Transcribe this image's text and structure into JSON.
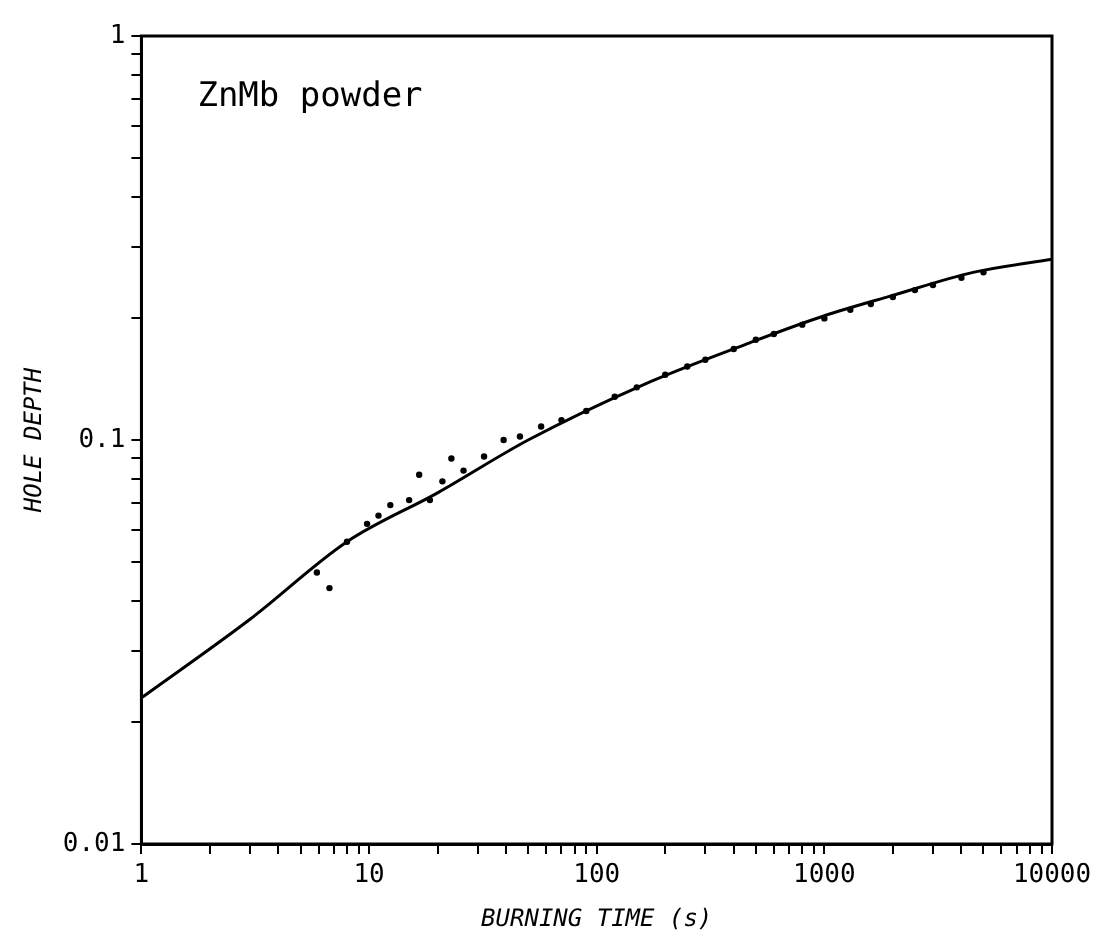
{
  "chart_data": {
    "type": "scatter",
    "xlabel": "BURNING TIME (s)",
    "ylabel": "HOLE DEPTH",
    "annotations": [
      "ZnMb powder"
    ],
    "log": "xy",
    "grid": false,
    "legend": false,
    "xlim": [
      1,
      10000
    ],
    "ylim": [
      0.01,
      1
    ],
    "xticks": [
      1,
      {
        "value": 2,
        "label": null
      },
      {
        "value": 3,
        "label": null
      },
      {
        "value": 4,
        "label": null
      },
      {
        "value": 5,
        "label": null
      },
      {
        "value": 6,
        "label": null
      },
      {
        "value": 7,
        "label": null
      },
      {
        "value": 8,
        "label": null
      },
      {
        "value": 9,
        "label": null
      },
      10,
      {
        "value": 20,
        "label": null
      },
      {
        "value": 30,
        "label": null
      },
      {
        "value": 40,
        "label": null
      },
      {
        "value": 50,
        "label": null
      },
      {
        "value": 60,
        "label": null
      },
      {
        "value": 70,
        "label": null
      },
      {
        "value": 80,
        "label": null
      },
      {
        "value": 90,
        "label": null
      },
      100,
      {
        "value": 200,
        "label": null
      },
      {
        "value": 300,
        "label": null
      },
      {
        "value": 400,
        "label": null
      },
      {
        "value": 500,
        "label": null
      },
      {
        "value": 600,
        "label": null
      },
      {
        "value": 700,
        "label": null
      },
      {
        "value": 800,
        "label": null
      },
      {
        "value": 900,
        "label": null
      },
      1000,
      {
        "value": 2000,
        "label": null
      },
      {
        "value": 3000,
        "label": null
      },
      {
        "value": 4000,
        "label": null
      },
      {
        "value": 5000,
        "label": null
      },
      {
        "value": 6000,
        "label": null
      },
      {
        "value": 7000,
        "label": null
      },
      {
        "value": 8000,
        "label": null
      },
      {
        "value": 9000,
        "label": null
      },
      10000
    ],
    "yticks": [
      0.01,
      {
        "value": 0.02,
        "label": null
      },
      {
        "value": 0.03,
        "label": null
      },
      {
        "value": 0.04,
        "label": null
      },
      {
        "value": 0.05,
        "label": null
      },
      {
        "value": 0.06,
        "label": null
      },
      {
        "value": 0.07,
        "label": null
      },
      {
        "value": 0.08,
        "label": null
      },
      {
        "value": 0.09,
        "label": null
      },
      0.1,
      {
        "value": 0.2,
        "label": null
      },
      {
        "value": 0.3,
        "label": null
      },
      {
        "value": 0.4,
        "label": null
      },
      {
        "value": 0.5,
        "label": null
      },
      {
        "value": 0.6,
        "label": null
      },
      {
        "value": 0.7,
        "label": null
      },
      {
        "value": 0.8,
        "label": null
      },
      {
        "value": 0.9,
        "label": null
      },
      1
    ],
    "series": [
      {
        "type": "scatter",
        "marker": "circle",
        "color": "#000000",
        "x": [
          5.9,
          6.7,
          8,
          9.8,
          11,
          12.4,
          15,
          16.6,
          18.5,
          21,
          23,
          26,
          32,
          39,
          46,
          57,
          70,
          90,
          120,
          150,
          200,
          250,
          300,
          400,
          500,
          600,
          800,
          1000,
          1300,
          1600,
          2000,
          2500,
          3000,
          4000,
          5000
        ],
        "values": [
          0.047,
          0.043,
          0.056,
          0.062,
          0.065,
          0.069,
          0.071,
          0.082,
          0.071,
          0.079,
          0.09,
          0.084,
          0.091,
          0.1,
          0.102,
          0.108,
          0.112,
          0.118,
          0.128,
          0.135,
          0.145,
          0.152,
          0.158,
          0.168,
          0.177,
          0.183,
          0.193,
          0.2,
          0.21,
          0.217,
          0.226,
          0.235,
          0.242,
          0.252,
          0.26
        ]
      },
      {
        "type": "line",
        "marker": "none",
        "line_style": "solid",
        "color": "#000000",
        "x": [
          1,
          3,
          8,
          20,
          50,
          160,
          470,
          1000,
          2000,
          4500,
          10000
        ],
        "values": [
          0.023,
          0.036,
          0.056,
          0.074,
          0.1,
          0.137,
          0.174,
          0.203,
          0.228,
          0.26,
          0.28
        ]
      }
    ]
  }
}
